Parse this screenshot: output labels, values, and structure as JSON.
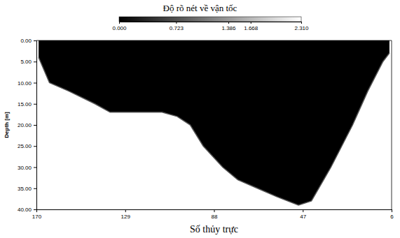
{
  "chart_data": {
    "type": "area",
    "title": "Độ rõ nét về vận tốc",
    "x_label": "Số thủy trực",
    "y_label": "Depth [m]",
    "x": [
      169,
      164,
      155,
      143,
      136,
      112,
      105,
      99,
      93,
      84,
      77,
      68,
      59,
      49,
      43,
      34,
      24,
      17,
      10,
      7
    ],
    "values": [
      4,
      10,
      12,
      15,
      17,
      17,
      18,
      20,
      25,
      30,
      33,
      35,
      37,
      39,
      38,
      30,
      20,
      12,
      5,
      3
    ],
    "color": "#000000",
    "xlim": [
      170,
      6
    ],
    "xticks": [
      170,
      129,
      88,
      47,
      6
    ],
    "ylim": [
      0,
      40
    ],
    "yticks": [
      {
        "value": 0,
        "label": "0.00"
      },
      {
        "value": 5,
        "label": "5.00"
      },
      {
        "value": 10,
        "label": "10.00"
      },
      {
        "value": 15,
        "label": "15.00"
      },
      {
        "value": 20,
        "label": "20.00"
      },
      {
        "value": 25,
        "label": "25.00"
      },
      {
        "value": 30,
        "label": "30.00"
      },
      {
        "value": 35,
        "label": "35.00"
      },
      {
        "value": 40,
        "label": "40.00"
      }
    ],
    "colorbar": {
      "range": [
        0,
        2.31
      ],
      "ticks": [
        {
          "value": 0,
          "label": "0.000"
        },
        {
          "value": 0.723,
          "label": "0.723"
        },
        {
          "value": 1.386,
          "label": "1.386"
        },
        {
          "value": 1.668,
          "label": "1.668"
        },
        {
          "value": 2.31,
          "label": "2.310"
        }
      ]
    }
  }
}
